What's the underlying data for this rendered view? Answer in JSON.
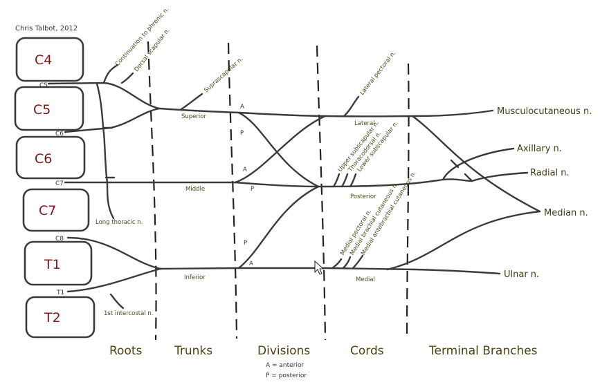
{
  "credit": "Chris Talbot, 2012",
  "roots": [
    "C4",
    "C5",
    "C6",
    "C7",
    "T1",
    "T2"
  ],
  "root_numbers": [
    "C5",
    "C6",
    "C7",
    "C8",
    "T1"
  ],
  "side_nerves": {
    "continuation_phrenic": "Continuation to phrenic n.",
    "dorsal_scapular": "Dorsal scapular n.",
    "long_thoracic": "Long thoracic n.",
    "first_intercostal": "1st intercostal n.",
    "suprascapular": "Suprascapular n.",
    "lateral_pectoral": "Lateral pectoral n.",
    "upper_subscapular": "Upper subscapular n.",
    "thoracodorsal": "Thoracodorsal n.",
    "lower_subscapular": "Lower subscapular n.",
    "medial_pectoral": "Medial pectoral n.",
    "medial_brachial_cutaneous": "Medial brachial cutaneous n.",
    "medial_antebrachial_cutaneous": "Medial antebrachial cutaneous n."
  },
  "trunks": {
    "superior": "Superior",
    "middle": "Middle",
    "inferior": "Inferior"
  },
  "divisions": {
    "a": "A",
    "p": "P"
  },
  "cords": {
    "lateral": "Lateral",
    "posterior": "Posterior",
    "medial": "Medial"
  },
  "terminal_branches": {
    "musculocutaneous": "Musculocutaneous n.",
    "axillary": "Axillary n.",
    "radial": "Radial n.",
    "median": "Median n.",
    "ulnar": "Ulnar n."
  },
  "column_headers": {
    "roots": "Roots",
    "trunks": "Trunks",
    "divisions": "Divisions",
    "cords": "Cords",
    "terminal": "Terminal Branches"
  },
  "legend": {
    "anterior": "A = anterior",
    "posterior": "P = posterior"
  }
}
